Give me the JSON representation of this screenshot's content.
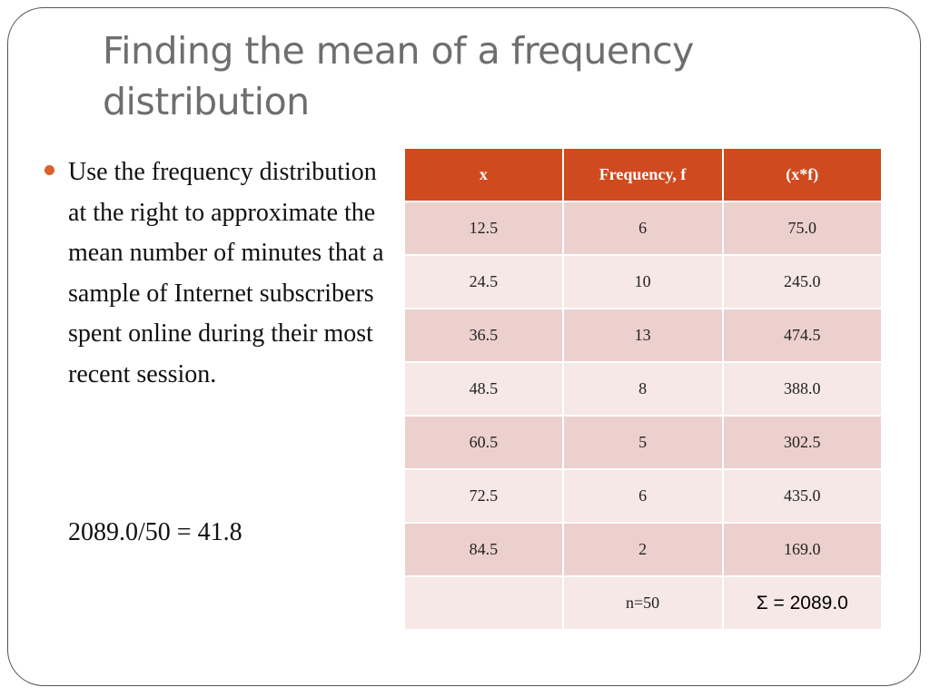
{
  "slide": {
    "title": "Finding the mean of a frequency distribution",
    "bullet": "Use the frequency distribution at the right to approximate the mean number of minutes that a sample of Internet subscribers spent online during their most recent session.",
    "formula": "2089.0/50 = 41.8",
    "table": {
      "headers": [
        "x",
        "Frequency, f",
        "(x*f)"
      ],
      "rows": [
        [
          "12.5",
          "6",
          "75.0"
        ],
        [
          "24.5",
          "10",
          "245.0"
        ],
        [
          "36.5",
          "13",
          "474.5"
        ],
        [
          "48.5",
          "8",
          "388.0"
        ],
        [
          "60.5",
          "5",
          "302.5"
        ],
        [
          "72.5",
          "6",
          "435.0"
        ],
        [
          "84.5",
          "2",
          "169.0"
        ],
        [
          null,
          "n=50",
          "Σ = 2089.0"
        ]
      ]
    }
  }
}
